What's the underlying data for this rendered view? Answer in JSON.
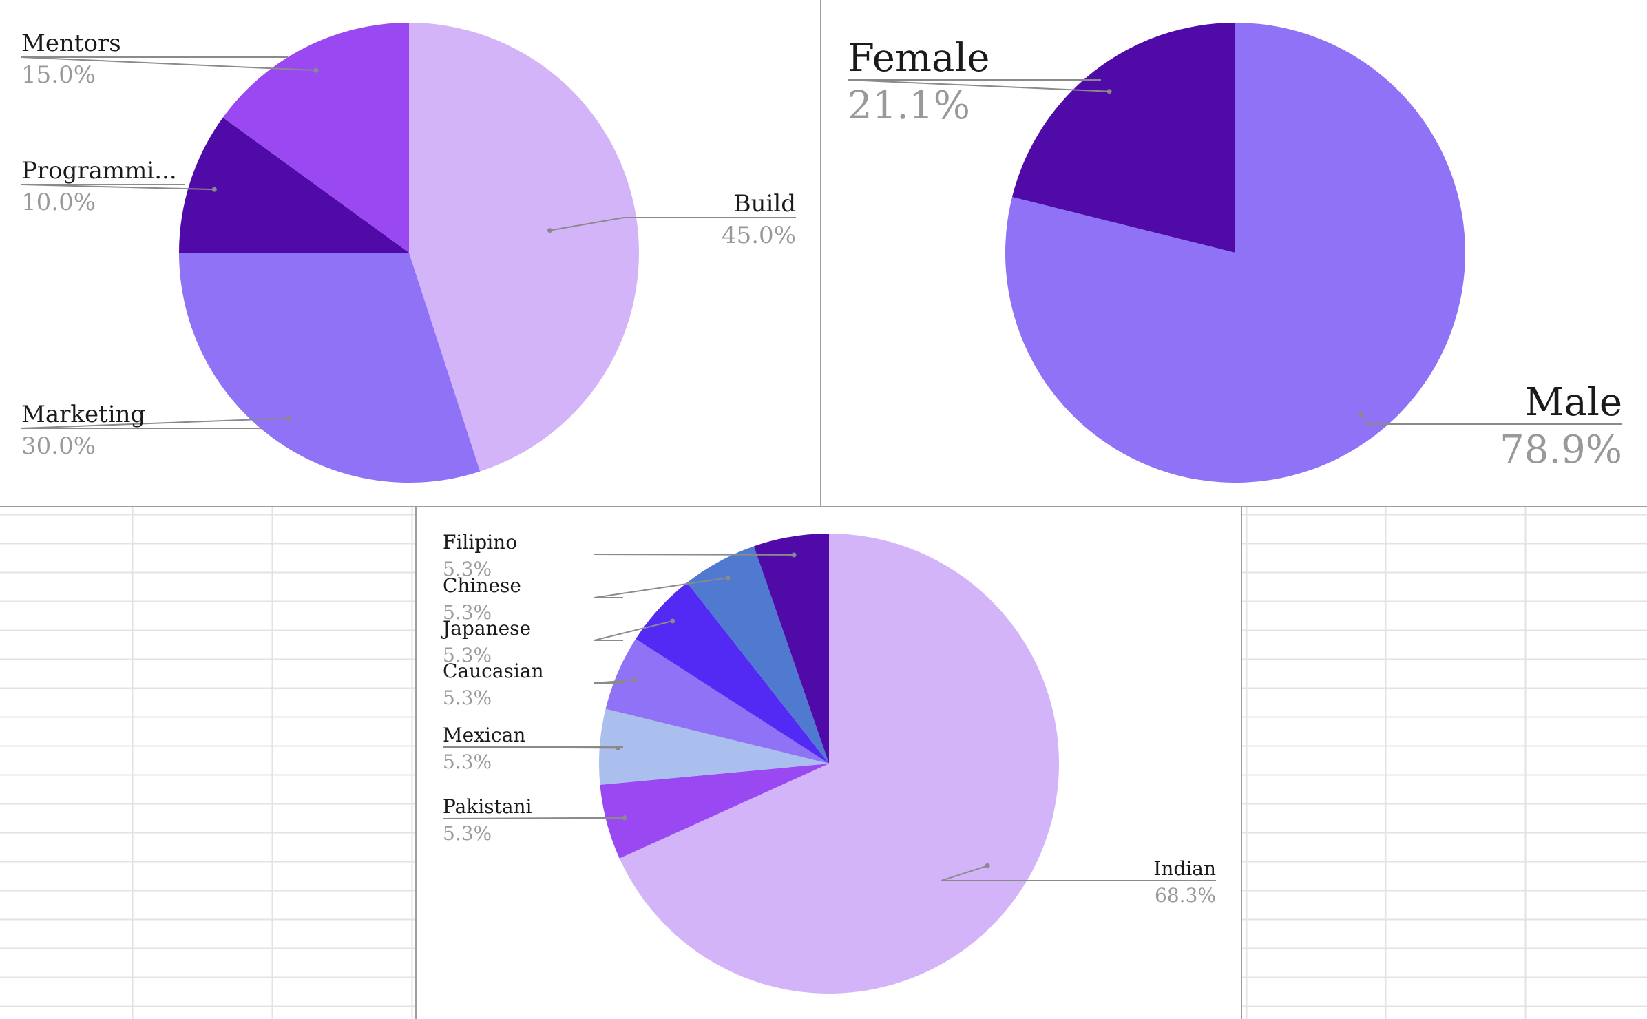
{
  "chart_data": [
    {
      "type": "pie",
      "title": "",
      "slices": [
        {
          "label": "Build",
          "value": 45.0,
          "value_label": "45.0%",
          "color": "#d4b4f8"
        },
        {
          "label": "Marketing",
          "value": 30.0,
          "value_label": "30.0%",
          "color": "#8f72f5"
        },
        {
          "label": "Programmi...",
          "value": 10.0,
          "value_label": "10.0%",
          "color": "#4f0aa8"
        },
        {
          "label": "Mentors",
          "value": 15.0,
          "value_label": "15.0%",
          "color": "#9a49f2"
        }
      ],
      "start_angle": "12 o'clock",
      "direction": "clockwise",
      "legend": "none",
      "labels": "outside with leader lines"
    },
    {
      "type": "pie",
      "title": "",
      "slices": [
        {
          "label": "Male",
          "value": 78.9,
          "value_label": "78.9%",
          "color": "#8f72f5"
        },
        {
          "label": "Female",
          "value": 21.1,
          "value_label": "21.1%",
          "color": "#4f0aa8"
        }
      ],
      "start_angle": "12 o'clock",
      "direction": "clockwise",
      "legend": "none",
      "labels": "outside with leader lines"
    },
    {
      "type": "pie",
      "title": "",
      "slices": [
        {
          "label": "Indian",
          "value": 68.3,
          "value_label": "68.3%",
          "color": "#d4b4f8"
        },
        {
          "label": "Pakistani",
          "value": 5.3,
          "value_label": "5.3%",
          "color": "#9a49f2"
        },
        {
          "label": "Mexican",
          "value": 5.3,
          "value_label": "5.3%",
          "color": "#abbfee"
        },
        {
          "label": "Caucasian",
          "value": 5.3,
          "value_label": "5.3%",
          "color": "#8f72f5"
        },
        {
          "label": "Japanese",
          "value": 5.3,
          "value_label": "5.3%",
          "color": "#5329f4"
        },
        {
          "label": "Chinese",
          "value": 5.3,
          "value_label": "5.3%",
          "color": "#4f7ad0"
        },
        {
          "label": "Filipino",
          "value": 5.3,
          "value_label": "5.3%",
          "color": "#4f0aa8"
        }
      ],
      "start_angle": "12 o'clock",
      "direction": "clockwise",
      "legend": "none",
      "labels": "outside with leader lines"
    }
  ],
  "colors": {
    "label_text": "#1a1a1a",
    "value_text": "#999999",
    "leader_line": "#8a8a8a",
    "gridline": "#e3e3e3",
    "panel_border": "#9e9e9e"
  }
}
